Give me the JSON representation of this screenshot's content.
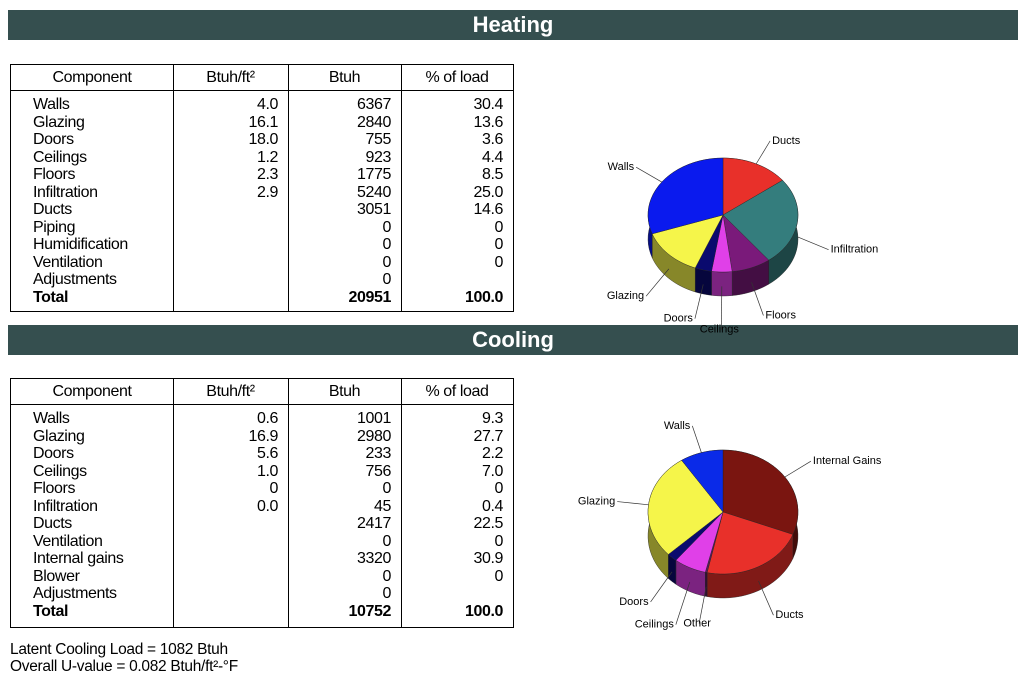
{
  "heating": {
    "title": "Heating",
    "table": {
      "header": [
        "Component",
        "Btuh/ft²",
        "Btuh",
        "% of load"
      ],
      "rows": [
        [
          "Walls",
          "4.0",
          "6367",
          "30.4"
        ],
        [
          "Glazing",
          "16.1",
          "2840",
          "13.6"
        ],
        [
          "Doors",
          "18.0",
          "755",
          "3.6"
        ],
        [
          "Ceilings",
          "1.2",
          "923",
          "4.4"
        ],
        [
          "Floors",
          "2.3",
          "1775",
          "8.5"
        ],
        [
          "Infiltration",
          "2.9",
          "5240",
          "25.0"
        ],
        [
          "Ducts",
          null,
          "3051",
          "14.6"
        ],
        [
          "Piping",
          null,
          "0",
          "0"
        ],
        [
          "Humidification",
          null,
          "0",
          "0"
        ],
        [
          "Ventilation",
          null,
          "0",
          "0"
        ],
        [
          "Adjustments",
          null,
          "0",
          null
        ]
      ],
      "total": [
        "Total",
        null,
        "20951",
        "100.0"
      ]
    },
    "pie": {
      "type": "pie",
      "slices": [
        {
          "label": "Ducts",
          "value": 14.6,
          "color": "#e8302a"
        },
        {
          "label": "Infiltration",
          "value": 25.0,
          "color": "#347d7d"
        },
        {
          "label": "Floors",
          "value": 8.5,
          "color": "#7a1a7a"
        },
        {
          "label": "Ceilings",
          "value": 4.4,
          "color": "#e040e8"
        },
        {
          "label": "Doors",
          "value": 3.6,
          "color": "#0a0a6e"
        },
        {
          "label": "Glazing",
          "value": 13.6,
          "color": "#f5f54a"
        },
        {
          "label": "Walls",
          "value": 30.4,
          "color": "#0a1aee"
        }
      ]
    }
  },
  "cooling": {
    "title": "Cooling",
    "table": {
      "header": [
        "Component",
        "Btuh/ft²",
        "Btuh",
        "% of load"
      ],
      "rows": [
        [
          "Walls",
          "0.6",
          "1001",
          "9.3"
        ],
        [
          "Glazing",
          "16.9",
          "2980",
          "27.7"
        ],
        [
          "Doors",
          "5.6",
          "233",
          "2.2"
        ],
        [
          "Ceilings",
          "1.0",
          "756",
          "7.0"
        ],
        [
          "Floors",
          "0",
          "0",
          "0"
        ],
        [
          "Infiltration",
          "0.0",
          "45",
          "0.4"
        ],
        [
          "Ducts",
          null,
          "2417",
          "22.5"
        ],
        [
          "Ventilation",
          null,
          "0",
          "0"
        ],
        [
          "Internal gains",
          null,
          "3320",
          "30.9"
        ],
        [
          "Blower",
          null,
          "0",
          "0"
        ],
        [
          "Adjustments",
          null,
          "0",
          null
        ]
      ],
      "total": [
        "Total",
        null,
        "10752",
        "100.0"
      ]
    },
    "pie": {
      "type": "pie",
      "slices": [
        {
          "label": "Internal Gains",
          "value": 30.9,
          "color": "#7a1510"
        },
        {
          "label": "Ducts",
          "value": 22.5,
          "color": "#e8302a"
        },
        {
          "label": "Other",
          "value": 0.4,
          "color": "#5a1a5a"
        },
        {
          "label": "Ceilings",
          "value": 7.0,
          "color": "#e040e8"
        },
        {
          "label": "Doors",
          "value": 2.2,
          "color": "#0a0a6e"
        },
        {
          "label": "Glazing",
          "value": 27.7,
          "color": "#f5f54a"
        },
        {
          "label": "Walls",
          "value": 9.3,
          "color": "#0a2ae8"
        }
      ]
    }
  },
  "notes": [
    "Latent Cooling Load = 1082 Btuh",
    "Overall U-value = 0.082 Btuh/ft²-°F"
  ]
}
